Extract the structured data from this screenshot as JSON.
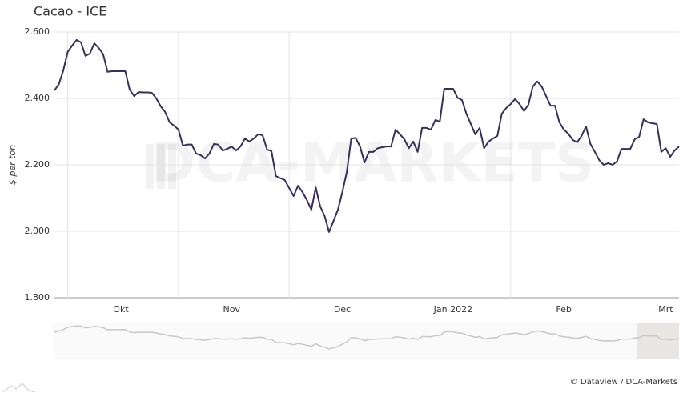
{
  "chart_data": {
    "type": "line",
    "title": "Cacao - ICE",
    "y_label": "$ per ton",
    "watermark": "DCA-MARKETS",
    "source": "© Dataview / DCA-Markets",
    "color": "#3a2e5c",
    "grid": true,
    "categories": [
      null,
      null,
      null,
      null,
      null,
      null,
      null,
      null,
      null,
      null,
      null,
      null,
      null,
      null,
      null,
      "Okt",
      null,
      null,
      null,
      null,
      null,
      null,
      null,
      null,
      null,
      null,
      null,
      null,
      null,
      null,
      null,
      null,
      null,
      null,
      null,
      null,
      null,
      null,
      null,
      null,
      "Nov",
      null,
      null,
      null,
      null,
      null,
      null,
      null,
      null,
      null,
      null,
      null,
      null,
      null,
      null,
      null,
      null,
      null,
      null,
      null,
      null,
      null,
      null,
      null,
      null,
      "Dec",
      null,
      null,
      null,
      null,
      null,
      null,
      null,
      null,
      null,
      null,
      null,
      null,
      null,
      null,
      null,
      null,
      null,
      null,
      null,
      null,
      null,
      null,
      null,
      null,
      "Jan 2022",
      null,
      null,
      null,
      null,
      null,
      null,
      null,
      null,
      null,
      null,
      null,
      null,
      null,
      null,
      null,
      null,
      null,
      null,
      null,
      null,
      null,
      null,
      null,
      null,
      "Feb",
      null,
      null,
      null,
      null,
      null,
      null,
      null,
      null,
      null,
      null,
      null,
      null,
      null,
      null,
      null,
      null,
      null,
      null,
      null,
      null,
      null,
      null,
      "Mrt",
      null,
      null,
      null
    ],
    "values": [
      2424,
      2443,
      2484,
      2540,
      2559,
      2576,
      2569,
      2528,
      2535,
      2566,
      2552,
      2533,
      2480,
      2482,
      2482,
      2482,
      2482,
      2426,
      2407,
      2419,
      2418,
      2418,
      2417,
      2400,
      2376,
      2359,
      2328,
      2318,
      2306,
      2258,
      2261,
      2261,
      2234,
      2229,
      2219,
      2234,
      2263,
      2261,
      2243,
      2248,
      2255,
      2243,
      2255,
      2279,
      2270,
      2279,
      2292,
      2289,
      2246,
      2241,
      2166,
      2160,
      2154,
      2130,
      2106,
      2137,
      2118,
      2094,
      2065,
      2132,
      2075,
      2046,
      1998,
      2031,
      2065,
      2118,
      2178,
      2279,
      2281,
      2255,
      2207,
      2239,
      2239,
      2250,
      2253,
      2255,
      2255,
      2306,
      2292,
      2277,
      2250,
      2270,
      2239,
      2311,
      2311,
      2306,
      2335,
      2330,
      2429,
      2429,
      2429,
      2402,
      2395,
      2354,
      2323,
      2292,
      2311,
      2250,
      2270,
      2279,
      2287,
      2354,
      2371,
      2383,
      2398,
      2383,
      2362,
      2381,
      2436,
      2451,
      2436,
      2407,
      2378,
      2378,
      2328,
      2306,
      2294,
      2275,
      2268,
      2287,
      2316,
      2263,
      2239,
      2214,
      2200,
      2205,
      2200,
      2210,
      2248,
      2248,
      2248,
      2277,
      2284,
      2337,
      2328,
      2325,
      2323,
      2239,
      2250,
      2224,
      2243,
      2255
    ],
    "ylim": [
      1800,
      2600
    ],
    "yticks": [
      {
        "value": 1800,
        "label": "1.800"
      },
      {
        "value": 2000,
        "label": "2.000"
      },
      {
        "value": 2200,
        "label": "2.200"
      },
      {
        "value": 2400,
        "label": "2.400"
      },
      {
        "value": 2600,
        "label": "2.600"
      }
    ]
  }
}
